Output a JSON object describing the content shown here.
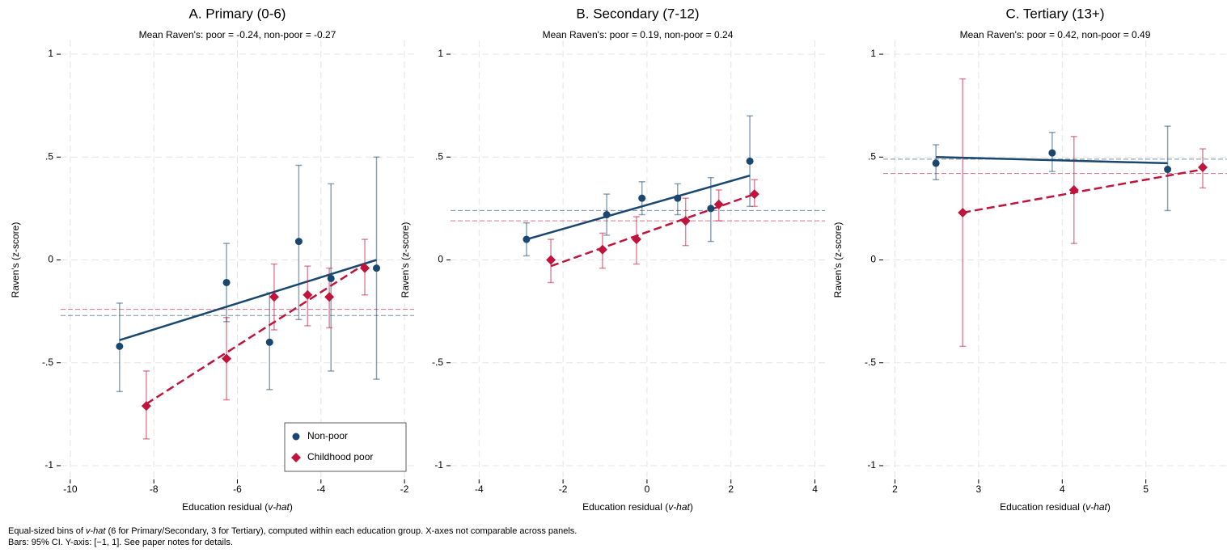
{
  "chart_data": [
    {
      "type": "scatter",
      "title": "A. Primary (0-6)",
      "subtitle": "Mean Raven's: poor = -0.24, non-poor = -0.27",
      "xlabel": [
        "Education residual (",
        "v-hat",
        ")"
      ],
      "ylabel": "Raven's (z-score)",
      "xlim": [
        -10.23,
        -1.77
      ],
      "xticks": [
        -10,
        -8,
        -6,
        -4,
        -2
      ],
      "ylim": [
        -1.067,
        1.067
      ],
      "yticks": [
        -1,
        {
          "value": -0.5,
          "label": "-.5"
        },
        0,
        {
          "value": 0.5,
          "label": ".5"
        },
        1
      ],
      "grid": true,
      "legend": "lower right",
      "series": [
        {
          "name": "Non-poor",
          "color": "#1a476f",
          "marker": "circle",
          "x": [
            -8.82,
            -6.26,
            -5.23,
            -4.53,
            -3.76,
            -2.67
          ],
          "values": [
            -0.42,
            -0.11,
            -0.4,
            0.09,
            -0.09,
            -0.04
          ],
          "ci": [
            [
              -0.64,
              -0.21
            ],
            [
              -0.3,
              0.08
            ],
            [
              -0.63,
              -0.16
            ],
            [
              -0.29,
              0.46
            ],
            [
              -0.54,
              0.37
            ],
            [
              -0.58,
              0.5
            ]
          ],
          "fit": {
            "x": [
              -8.82,
              -2.67
            ],
            "y": [
              -0.39,
              0.0
            ]
          },
          "mean": -0.27
        },
        {
          "name": "Childhood poor",
          "color": "#c0143c",
          "marker": "diamond",
          "x": [
            -8.18,
            -6.26,
            -5.12,
            -4.32,
            -3.8,
            -2.95
          ],
          "values": [
            -0.71,
            -0.48,
            -0.18,
            -0.17,
            -0.18,
            -0.04
          ],
          "ci": [
            [
              -0.87,
              -0.54
            ],
            [
              -0.68,
              -0.28
            ],
            [
              -0.34,
              -0.02
            ],
            [
              -0.32,
              -0.03
            ],
            [
              -0.33,
              -0.04
            ],
            [
              -0.17,
              0.1
            ]
          ],
          "fit": {
            "x": [
              -8.18,
              -2.95
            ],
            "y": [
              -0.7,
              -0.02
            ]
          },
          "mean": -0.24
        }
      ]
    },
    {
      "type": "scatter",
      "title": "B. Secondary (7-12)",
      "subtitle": "Mean Raven's: poor = 0.19, non-poor = 0.24",
      "xlabel": [
        "Education residual (",
        "v-hat",
        ")"
      ],
      "ylabel": "Raven's (z-score)",
      "xlim": [
        -4.68,
        4.24
      ],
      "xticks": [
        -4,
        -2,
        0,
        2,
        4
      ],
      "ylim": [
        -1.067,
        1.067
      ],
      "yticks": [
        -1,
        {
          "value": -0.5,
          "label": "-.5"
        },
        0,
        {
          "value": 0.5,
          "label": ".5"
        },
        1
      ],
      "grid": true,
      "series": [
        {
          "color": "#1a476f",
          "marker": "circle",
          "x": [
            -2.87,
            -0.96,
            -0.12,
            0.73,
            1.52,
            2.45
          ],
          "values": [
            0.1,
            0.22,
            0.3,
            0.3,
            0.25,
            0.48
          ],
          "ci": [
            [
              0.02,
              0.18
            ],
            [
              0.12,
              0.32
            ],
            [
              0.22,
              0.38
            ],
            [
              0.22,
              0.37
            ],
            [
              0.09,
              0.4
            ],
            [
              0.26,
              0.7
            ]
          ],
          "fit": {
            "x": [
              -2.87,
              2.45
            ],
            "y": [
              0.1,
              0.41
            ]
          },
          "mean": 0.24
        },
        {
          "color": "#c0143c",
          "marker": "diamond",
          "x": [
            -2.29,
            -1.06,
            -0.25,
            0.92,
            1.71,
            2.56
          ],
          "values": [
            0.0,
            0.05,
            0.1,
            0.19,
            0.27,
            0.32
          ],
          "ci": [
            [
              -0.11,
              0.1
            ],
            [
              -0.04,
              0.13
            ],
            [
              -0.02,
              0.21
            ],
            [
              0.07,
              0.3
            ],
            [
              0.19,
              0.34
            ],
            [
              0.26,
              0.39
            ]
          ],
          "fit": {
            "x": [
              -2.29,
              2.56
            ],
            "y": [
              -0.03,
              0.32
            ]
          },
          "mean": 0.19
        }
      ]
    },
    {
      "type": "scatter",
      "title": "C. Tertiary (13+)",
      "subtitle": "Mean Raven's: poor = 0.42, non-poor = 0.49",
      "xlabel": [
        "Education residual (",
        "v-hat",
        ")"
      ],
      "ylabel": "Raven's (z-score)",
      "xlim": [
        1.86,
        5.97
      ],
      "xticks": [
        2,
        3,
        4,
        5
      ],
      "ylim": [
        -1.067,
        1.067
      ],
      "yticks": [
        -1,
        {
          "value": -0.5,
          "label": "-.5"
        },
        0,
        {
          "value": 0.5,
          "label": ".5"
        },
        1
      ],
      "grid": true,
      "series": [
        {
          "color": "#1a476f",
          "marker": "circle",
          "x": [
            2.49,
            3.88,
            5.26
          ],
          "values": [
            0.47,
            0.52,
            0.44
          ],
          "ci": [
            [
              0.39,
              0.56
            ],
            [
              0.43,
              0.62
            ],
            [
              0.24,
              0.65
            ]
          ],
          "fit": {
            "x": [
              2.49,
              5.26
            ],
            "y": [
              0.5,
              0.47
            ]
          },
          "mean": 0.49
        },
        {
          "color": "#c0143c",
          "marker": "diamond",
          "x": [
            2.81,
            4.14,
            5.68
          ],
          "values": [
            0.23,
            0.34,
            0.45
          ],
          "ci": [
            [
              -0.42,
              0.88
            ],
            [
              0.08,
              0.6
            ],
            [
              0.35,
              0.54
            ]
          ],
          "fit": {
            "x": [
              2.81,
              5.68
            ],
            "y": [
              0.23,
              0.44
            ]
          },
          "mean": 0.42
        }
      ]
    }
  ],
  "note": [
    [
      "Equal-sized bins of ",
      "v-hat",
      " (6 for Primary/Secondary, 3 for Tertiary), computed within each education group. X-axes not comparable across panels."
    ],
    [
      "Bars: 95% CI. Y-axis: [−1, 1]. See paper notes for details."
    ]
  ]
}
